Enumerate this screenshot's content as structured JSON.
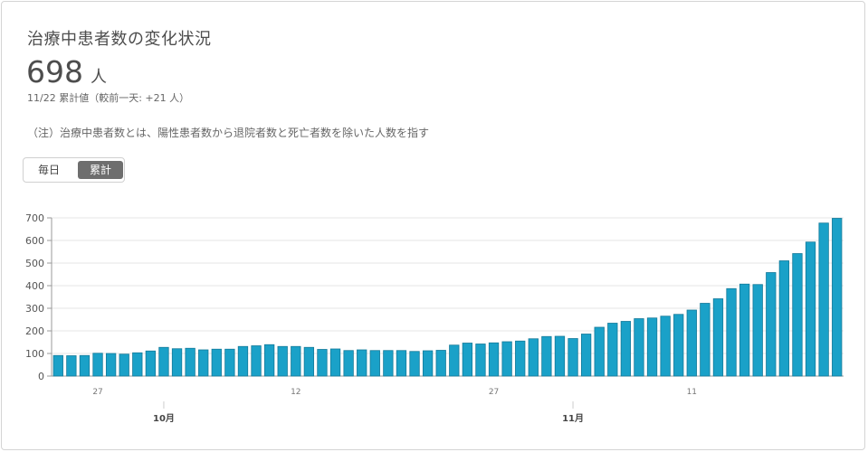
{
  "card": {
    "title": "治療中患者数の変化状況",
    "value": "698",
    "unit": "人",
    "subtitle": "11/22 累計値（較前一天: +21 人）",
    "note": "（注）治療中患者数とは、陽性患者数から退院者数と死亡者数を除いた人数を指す"
  },
  "toggle": {
    "daily": "毎日",
    "cumulative": "累計",
    "selected": "cumulative"
  },
  "colors": {
    "bar": "#1aa1c8",
    "bar_stroke": "#157a99",
    "grid": "#e6e6e6",
    "axis": "#999999"
  },
  "chart_data": {
    "type": "bar",
    "ylim": [
      0,
      700
    ],
    "yticks": [
      0,
      100,
      200,
      300,
      400,
      500,
      600,
      700
    ],
    "x_tick_labels": [
      {
        "index": 3,
        "label": "27"
      },
      {
        "index": 18,
        "label": "12"
      },
      {
        "index": 33,
        "label": "27"
      },
      {
        "index": 48,
        "label": "11"
      }
    ],
    "month_labels": [
      {
        "index": 8,
        "label": "10月"
      },
      {
        "index": 39,
        "label": "11月"
      }
    ],
    "values": [
      91,
      90,
      91,
      101,
      100,
      97,
      103,
      111,
      127,
      121,
      123,
      116,
      119,
      119,
      131,
      134,
      139,
      131,
      131,
      127,
      118,
      120,
      113,
      116,
      113,
      113,
      113,
      109,
      112,
      114,
      137,
      146,
      142,
      147,
      152,
      155,
      165,
      175,
      176,
      166,
      186,
      216,
      234,
      242,
      254,
      257,
      265,
      273,
      292,
      322,
      342,
      387,
      407,
      405,
      458,
      510,
      542,
      593,
      677,
      698
    ],
    "title": "",
    "xlabel": "",
    "ylabel": ""
  }
}
